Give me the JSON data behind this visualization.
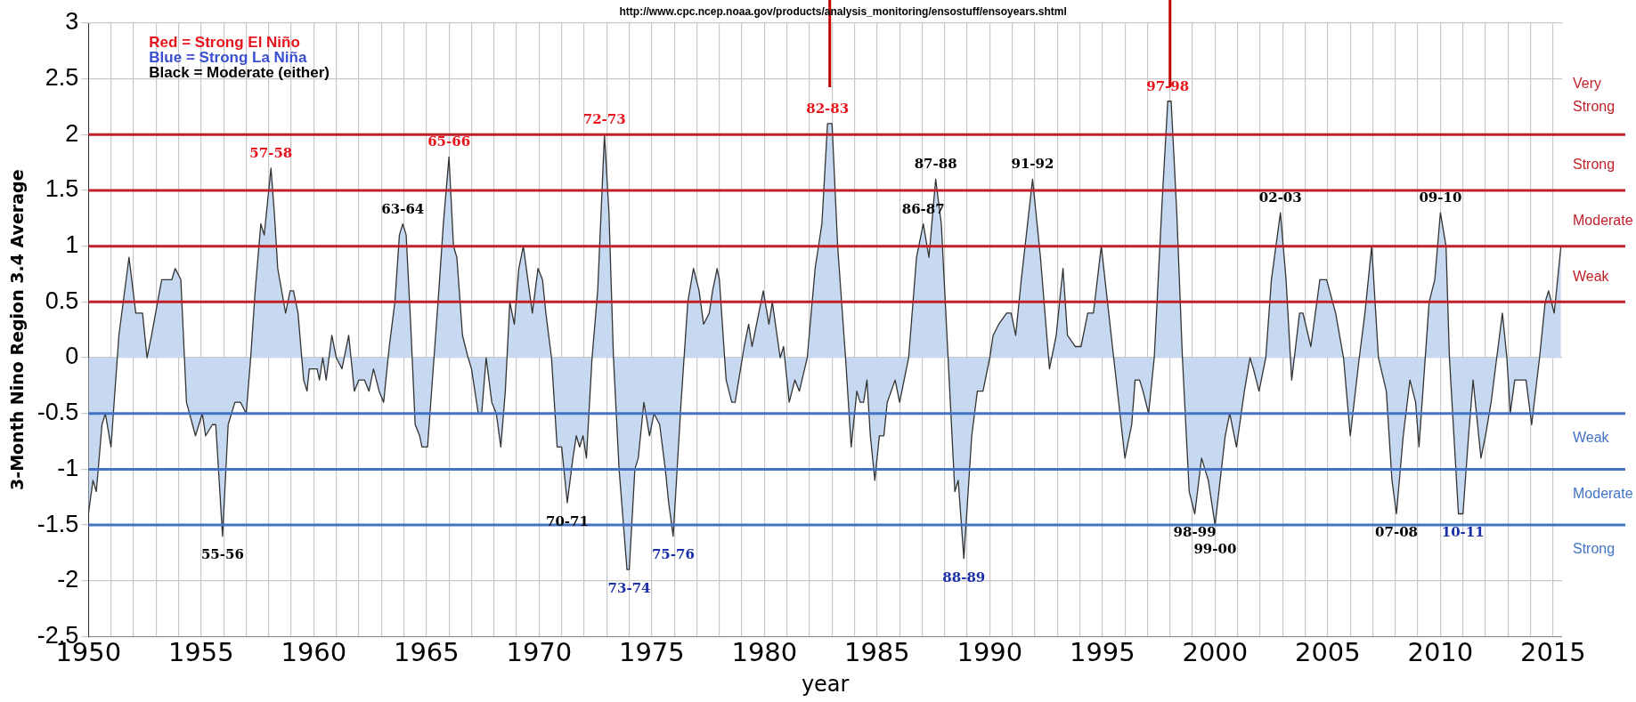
{
  "chart_data": {
    "type": "area",
    "xlabel": "year",
    "ylabel": "3-Month Nino Region 3.4 Average",
    "xlim": [
      1950,
      2015.4
    ],
    "ylim": [
      -2.5,
      3
    ],
    "xticks": [
      1950,
      {
        "value": 1951,
        "label": null
      },
      {
        "value": 1952,
        "label": null
      },
      {
        "value": 1953,
        "label": null
      },
      {
        "value": 1954,
        "label": null
      },
      1955,
      {
        "value": 1956,
        "label": null
      },
      {
        "value": 1957,
        "label": null
      },
      {
        "value": 1958,
        "label": null
      },
      {
        "value": 1959,
        "label": null
      },
      1960,
      {
        "value": 1961,
        "label": null
      },
      {
        "value": 1962,
        "label": null
      },
      {
        "value": 1963,
        "label": null
      },
      {
        "value": 1964,
        "label": null
      },
      1965,
      {
        "value": 1966,
        "label": null
      },
      {
        "value": 1967,
        "label": null
      },
      {
        "value": 1968,
        "label": null
      },
      {
        "value": 1969,
        "label": null
      },
      1970,
      {
        "value": 1971,
        "label": null
      },
      {
        "value": 1972,
        "label": null
      },
      {
        "value": 1973,
        "label": null
      },
      {
        "value": 1974,
        "label": null
      },
      1975,
      {
        "value": 1976,
        "label": null
      },
      {
        "value": 1977,
        "label": null
      },
      {
        "value": 1978,
        "label": null
      },
      {
        "value": 1979,
        "label": null
      },
      1980,
      {
        "value": 1981,
        "label": null
      },
      {
        "value": 1982,
        "label": null
      },
      {
        "value": 1983,
        "label": null
      },
      {
        "value": 1984,
        "label": null
      },
      1985,
      {
        "value": 1986,
        "label": null
      },
      {
        "value": 1987,
        "label": null
      },
      {
        "value": 1988,
        "label": null
      },
      {
        "value": 1989,
        "label": null
      },
      1990,
      {
        "value": 1991,
        "label": null
      },
      {
        "value": 1992,
        "label": null
      },
      {
        "value": 1993,
        "label": null
      },
      {
        "value": 1994,
        "label": null
      },
      1995,
      {
        "value": 1996,
        "label": null
      },
      {
        "value": 1997,
        "label": null
      },
      {
        "value": 1998,
        "label": null
      },
      {
        "value": 1999,
        "label": null
      },
      2000,
      {
        "value": 2001,
        "label": null
      },
      {
        "value": 2002,
        "label": null
      },
      {
        "value": 2003,
        "label": null
      },
      {
        "value": 2004,
        "label": null
      },
      2005,
      {
        "value": 2006,
        "label": null
      },
      {
        "value": 2007,
        "label": null
      },
      {
        "value": 2008,
        "label": null
      },
      {
        "value": 2009,
        "label": null
      },
      2010,
      {
        "value": 2011,
        "label": null
      },
      {
        "value": 2012,
        "label": null
      },
      {
        "value": 2013,
        "label": null
      },
      {
        "value": 2014,
        "label": null
      },
      2015
    ],
    "yticks": [
      -2.5,
      -2,
      -1.5,
      -1,
      -0.5,
      0,
      0.5,
      1,
      1.5,
      2,
      2.5,
      3
    ],
    "grid": true,
    "series": [
      {
        "color": "#c6d9f0",
        "x": [
          1950.0,
          1950.2,
          1950.35,
          1950.6,
          1950.75,
          1951.0,
          1951.35,
          1951.8,
          1952.1,
          1952.4,
          1952.6,
          1952.8,
          1953.25,
          1953.7,
          1953.85,
          1954.1,
          1954.35,
          1954.75,
          1955.05,
          1955.2,
          1955.5,
          1955.65,
          1955.95,
          1956.2,
          1956.5,
          1956.75,
          1957.0,
          1957.2,
          1957.4,
          1957.65,
          1957.8,
          1957.95,
          1958.1,
          1958.25,
          1958.4,
          1958.75,
          1958.95,
          1959.1,
          1959.3,
          1959.55,
          1959.7,
          1959.8,
          1960.15,
          1960.25,
          1960.4,
          1960.55,
          1960.8,
          1961.0,
          1961.25,
          1961.55,
          1961.8,
          1962.0,
          1962.25,
          1962.45,
          1962.65,
          1962.9,
          1963.1,
          1963.35,
          1963.6,
          1963.8,
          1963.95,
          1964.1,
          1964.3,
          1964.5,
          1964.7,
          1964.8,
          1965.05,
          1965.3,
          1965.55,
          1965.75,
          1966.0,
          1966.2,
          1966.35,
          1966.6,
          1966.85,
          1967.0,
          1967.3,
          1967.45,
          1967.65,
          1967.9,
          1968.1,
          1968.3,
          1968.5,
          1968.7,
          1968.9,
          1969.1,
          1969.3,
          1969.7,
          1969.95,
          1970.15,
          1970.3,
          1970.55,
          1970.8,
          1971.0,
          1971.25,
          1971.5,
          1971.65,
          1971.8,
          1971.95,
          1972.1,
          1972.35,
          1972.6,
          1972.9,
          1973.1,
          1973.3,
          1973.55,
          1973.9,
          1974.0,
          1974.25,
          1974.4,
          1974.65,
          1974.9,
          1975.1,
          1975.35,
          1975.6,
          1975.75,
          1975.95,
          1976.3,
          1976.6,
          1976.85,
          1977.1,
          1977.3,
          1977.55,
          1977.7,
          1977.9,
          1978.0,
          1978.3,
          1978.55,
          1978.7,
          1979.1,
          1979.3,
          1979.45,
          1979.75,
          1979.95,
          1980.2,
          1980.35,
          1980.7,
          1980.85,
          1981.1,
          1981.35,
          1981.55,
          1981.9,
          1982.25,
          1982.55,
          1982.8,
          1983.0,
          1983.25,
          1983.6,
          1983.85,
          1984.1,
          1984.25,
          1984.4,
          1984.55,
          1984.7,
          1984.9,
          1985.1,
          1985.3,
          1985.45,
          1985.8,
          1986.0,
          1986.4,
          1986.75,
          1987.05,
          1987.3,
          1987.6,
          1987.85,
          1988.2,
          1988.45,
          1988.6,
          1988.85,
          1989.2,
          1989.45,
          1989.7,
          1990.0,
          1990.15,
          1990.4,
          1990.75,
          1990.95,
          1991.15,
          1991.4,
          1991.9,
          1992.25,
          1992.65,
          1992.95,
          1993.25,
          1993.45,
          1993.8,
          1994.05,
          1994.35,
          1994.6,
          1994.95,
          1995.5,
          1996.0,
          1996.3,
          1996.45,
          1996.65,
          1996.8,
          1997.05,
          1997.3,
          1997.65,
          1997.9,
          1998.05,
          1998.3,
          1998.55,
          1998.85,
          1999.1,
          1999.4,
          1999.7,
          2000.0,
          2000.45,
          2000.65,
          2000.95,
          2001.3,
          2001.55,
          2001.7,
          2001.95,
          2002.25,
          2002.5,
          2002.9,
          2003.15,
          2003.4,
          2003.75,
          2003.9,
          2004.25,
          2004.65,
          2004.95,
          2005.35,
          2005.7,
          2006.0,
          2006.4,
          2006.65,
          2006.95,
          2007.25,
          2007.6,
          2007.85,
          2008.05,
          2008.35,
          2008.65,
          2008.9,
          2009.05,
          2009.5,
          2009.75,
          2010.0,
          2010.25,
          2010.4,
          2010.8,
          2011.0,
          2011.25,
          2011.45,
          2011.8,
          2012.0,
          2012.25,
          2012.5,
          2012.75,
          2012.95,
          2013.1,
          2013.3,
          2013.8,
          2014.05,
          2014.4,
          2014.65,
          2014.8,
          2015.05,
          2015.35
        ],
        "values": [
          -1.4,
          -1.1,
          -1.2,
          -0.6,
          -0.5,
          -0.8,
          0.2,
          0.9,
          0.4,
          0.4,
          0.0,
          0.2,
          0.7,
          0.7,
          0.8,
          0.7,
          -0.4,
          -0.7,
          -0.5,
          -0.7,
          -0.6,
          -0.6,
          -1.6,
          -0.6,
          -0.4,
          -0.4,
          -0.5,
          0.0,
          0.6,
          1.2,
          1.1,
          1.4,
          1.7,
          1.3,
          0.8,
          0.4,
          0.6,
          0.6,
          0.4,
          -0.2,
          -0.3,
          -0.1,
          -0.1,
          -0.2,
          0.0,
          -0.2,
          0.2,
          0.0,
          -0.1,
          0.2,
          -0.3,
          -0.2,
          -0.2,
          -0.3,
          -0.1,
          -0.3,
          -0.4,
          0.1,
          0.5,
          1.1,
          1.2,
          1.1,
          0.3,
          -0.6,
          -0.7,
          -0.8,
          -0.8,
          -0.1,
          0.6,
          1.2,
          1.8,
          1.0,
          0.9,
          0.2,
          0.0,
          -0.1,
          -0.5,
          -0.5,
          0.0,
          -0.4,
          -0.5,
          -0.8,
          -0.3,
          0.5,
          0.3,
          0.8,
          1.0,
          0.4,
          0.8,
          0.7,
          0.4,
          0.0,
          -0.8,
          -0.8,
          -1.3,
          -0.9,
          -0.7,
          -0.8,
          -0.7,
          -0.9,
          0.0,
          0.6,
          2.0,
          1.3,
          0.0,
          -1.0,
          -1.9,
          -1.9,
          -1.0,
          -0.9,
          -0.4,
          -0.7,
          -0.5,
          -0.6,
          -1.0,
          -1.3,
          -1.6,
          -0.4,
          0.5,
          0.8,
          0.6,
          0.3,
          0.4,
          0.6,
          0.8,
          0.7,
          -0.2,
          -0.4,
          -0.4,
          0.1,
          0.3,
          0.1,
          0.4,
          0.6,
          0.3,
          0.5,
          0.0,
          0.1,
          -0.4,
          -0.2,
          -0.3,
          0.0,
          0.8,
          1.2,
          2.1,
          2.1,
          1.0,
          0.0,
          -0.8,
          -0.3,
          -0.4,
          -0.4,
          -0.2,
          -0.7,
          -1.1,
          -0.7,
          -0.7,
          -0.4,
          -0.2,
          -0.4,
          0.0,
          0.9,
          1.2,
          0.9,
          1.6,
          1.2,
          -0.2,
          -1.2,
          -1.1,
          -1.8,
          -0.7,
          -0.3,
          -0.3,
          0.0,
          0.2,
          0.3,
          0.4,
          0.4,
          0.2,
          0.7,
          1.6,
          0.9,
          -0.1,
          0.2,
          0.8,
          0.2,
          0.1,
          0.1,
          0.4,
          0.4,
          1.0,
          0.0,
          -0.9,
          -0.6,
          -0.2,
          -0.2,
          -0.3,
          -0.5,
          0.0,
          1.4,
          2.3,
          2.3,
          1.3,
          0.0,
          -1.2,
          -1.4,
          -0.9,
          -1.1,
          -1.5,
          -0.7,
          -0.5,
          -0.8,
          -0.3,
          0.0,
          -0.1,
          -0.3,
          0.0,
          0.7,
          1.3,
          0.7,
          -0.2,
          0.4,
          0.4,
          0.1,
          0.7,
          0.7,
          0.4,
          0.0,
          -0.7,
          0.0,
          0.4,
          1.0,
          0.0,
          -0.3,
          -1.1,
          -1.4,
          -0.7,
          -0.2,
          -0.4,
          -0.8,
          0.5,
          0.7,
          1.3,
          1.0,
          0.0,
          -1.4,
          -1.4,
          -0.7,
          -0.2,
          -0.9,
          -0.7,
          -0.4,
          0.0,
          0.4,
          0.0,
          -0.5,
          -0.2,
          -0.2,
          -0.6,
          0.0,
          0.5,
          0.6,
          0.4,
          1.0
        ]
      }
    ],
    "ref_lines": [
      {
        "axis": "y",
        "value": 2,
        "color": "#c0202a",
        "label": "Very\nStrong"
      },
      {
        "axis": "y",
        "value": 1.5,
        "color": "#c0202a",
        "label": "Strong"
      },
      {
        "axis": "y",
        "value": 1,
        "color": "#c0202a",
        "label": "Moderate"
      },
      {
        "axis": "y",
        "value": 0.5,
        "color": "#c0202a",
        "label": "Weak"
      },
      {
        "axis": "y",
        "value": -0.5,
        "color": "#4472c4",
        "label": "Weak"
      },
      {
        "axis": "y",
        "value": -1,
        "color": "#4472c4",
        "label": "Moderate"
      },
      {
        "axis": "y",
        "value": -1.5,
        "color": "#4472c4",
        "label": "Strong"
      },
      {
        "axis": "x",
        "value": 1982.9,
        "color": "#c00000"
      },
      {
        "axis": "x",
        "value": 1998.0,
        "color": "#c00000"
      }
    ],
    "annotations": [
      "http://www.cpc.ncep.noaa.gov/products/analysis_monitoring/ensostuff/ensoyears.shtml",
      "Red = Strong El Niño",
      "Blue = Strong La Niña",
      "Black = Moderate (either)",
      {
        "text": "57-58",
        "x": 1958.1,
        "y": 1.7
      },
      {
        "text": "65-66",
        "x": 1966.0,
        "y": 1.8
      },
      {
        "text": "63-64",
        "x": 1963.95,
        "y": 1.2
      },
      {
        "text": "55-56",
        "x": 1955.95,
        "y": -1.6
      },
      {
        "text": "70-71",
        "x": 1971.25,
        "y": -1.3
      },
      {
        "text": "72-73",
        "x": 1972.9,
        "y": 2.0
      },
      {
        "text": "82-83",
        "x": 1982.8,
        "y": 2.1
      },
      {
        "text": "87-88",
        "x": 1987.6,
        "y": 1.6
      },
      {
        "text": "86-87",
        "x": 1987.05,
        "y": 1.2
      },
      {
        "text": "91-92",
        "x": 1991.9,
        "y": 1.6
      },
      {
        "text": "75-76",
        "x": 1975.95,
        "y": -1.6
      },
      {
        "text": "73-74",
        "x": 1974.0,
        "y": -1.9
      },
      {
        "text": "88-89",
        "x": 1988.85,
        "y": -1.8
      },
      {
        "text": "97-98",
        "x": 1997.9,
        "y": 2.3
      },
      {
        "text": "02-03",
        "x": 2002.9,
        "y": 1.3
      },
      {
        "text": "09-10",
        "x": 2010.0,
        "y": 1.3
      },
      {
        "text": "98-99",
        "x": 1999.1,
        "y": -1.4
      },
      {
        "text": "99-00",
        "x": 2000.0,
        "y": -1.5
      },
      {
        "text": "07-08",
        "x": 2008.05,
        "y": -1.4
      },
      {
        "text": "10-11",
        "x": 2011.0,
        "y": -1.4
      }
    ]
  }
}
